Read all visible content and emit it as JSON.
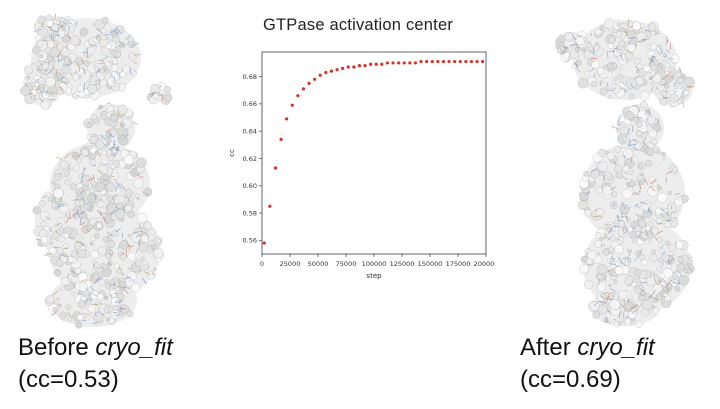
{
  "figure": {
    "chart_title": "GTPase activation center",
    "captions": {
      "before": {
        "prefix": "Before ",
        "italic": "cryo_fit",
        "line2": "(cc=0.53)"
      },
      "after": {
        "prefix": "After ",
        "italic": "cryo_fit",
        "line2": "(cc=0.69)"
      }
    }
  },
  "chart_data": {
    "type": "scatter",
    "title": "GTPase activation center",
    "xlabel": "step",
    "ylabel": "cc",
    "xlim": [
      0,
      200000
    ],
    "ylim": [
      0.55,
      0.698
    ],
    "xticks": [
      0,
      25000,
      50000,
      75000,
      100000,
      125000,
      150000,
      175000,
      200000
    ],
    "yticks": [
      0.56,
      0.58,
      0.6,
      0.62,
      0.64,
      0.66,
      0.68
    ],
    "grid": false,
    "legend_visible": false,
    "marker_color": "#d93025",
    "axis_color": "#555555",
    "series": [
      {
        "name": "cc",
        "x": [
          2000,
          7000,
          12000,
          17000,
          22000,
          27000,
          32000,
          37000,
          42000,
          47000,
          52000,
          57000,
          62000,
          67000,
          72000,
          77000,
          82000,
          87000,
          92000,
          97000,
          102000,
          107000,
          112000,
          117000,
          122000,
          127000,
          132000,
          137000,
          142000,
          147000,
          152000,
          157000,
          162000,
          167000,
          172000,
          177000,
          182000,
          187000,
          192000,
          197000
        ],
        "y": [
          0.558,
          0.585,
          0.613,
          0.634,
          0.649,
          0.659,
          0.666,
          0.671,
          0.675,
          0.678,
          0.681,
          0.683,
          0.684,
          0.685,
          0.686,
          0.687,
          0.687,
          0.688,
          0.688,
          0.689,
          0.689,
          0.689,
          0.69,
          0.69,
          0.69,
          0.69,
          0.69,
          0.69,
          0.691,
          0.691,
          0.691,
          0.691,
          0.691,
          0.691,
          0.691,
          0.691,
          0.691,
          0.691,
          0.691,
          0.691
        ]
      }
    ]
  }
}
